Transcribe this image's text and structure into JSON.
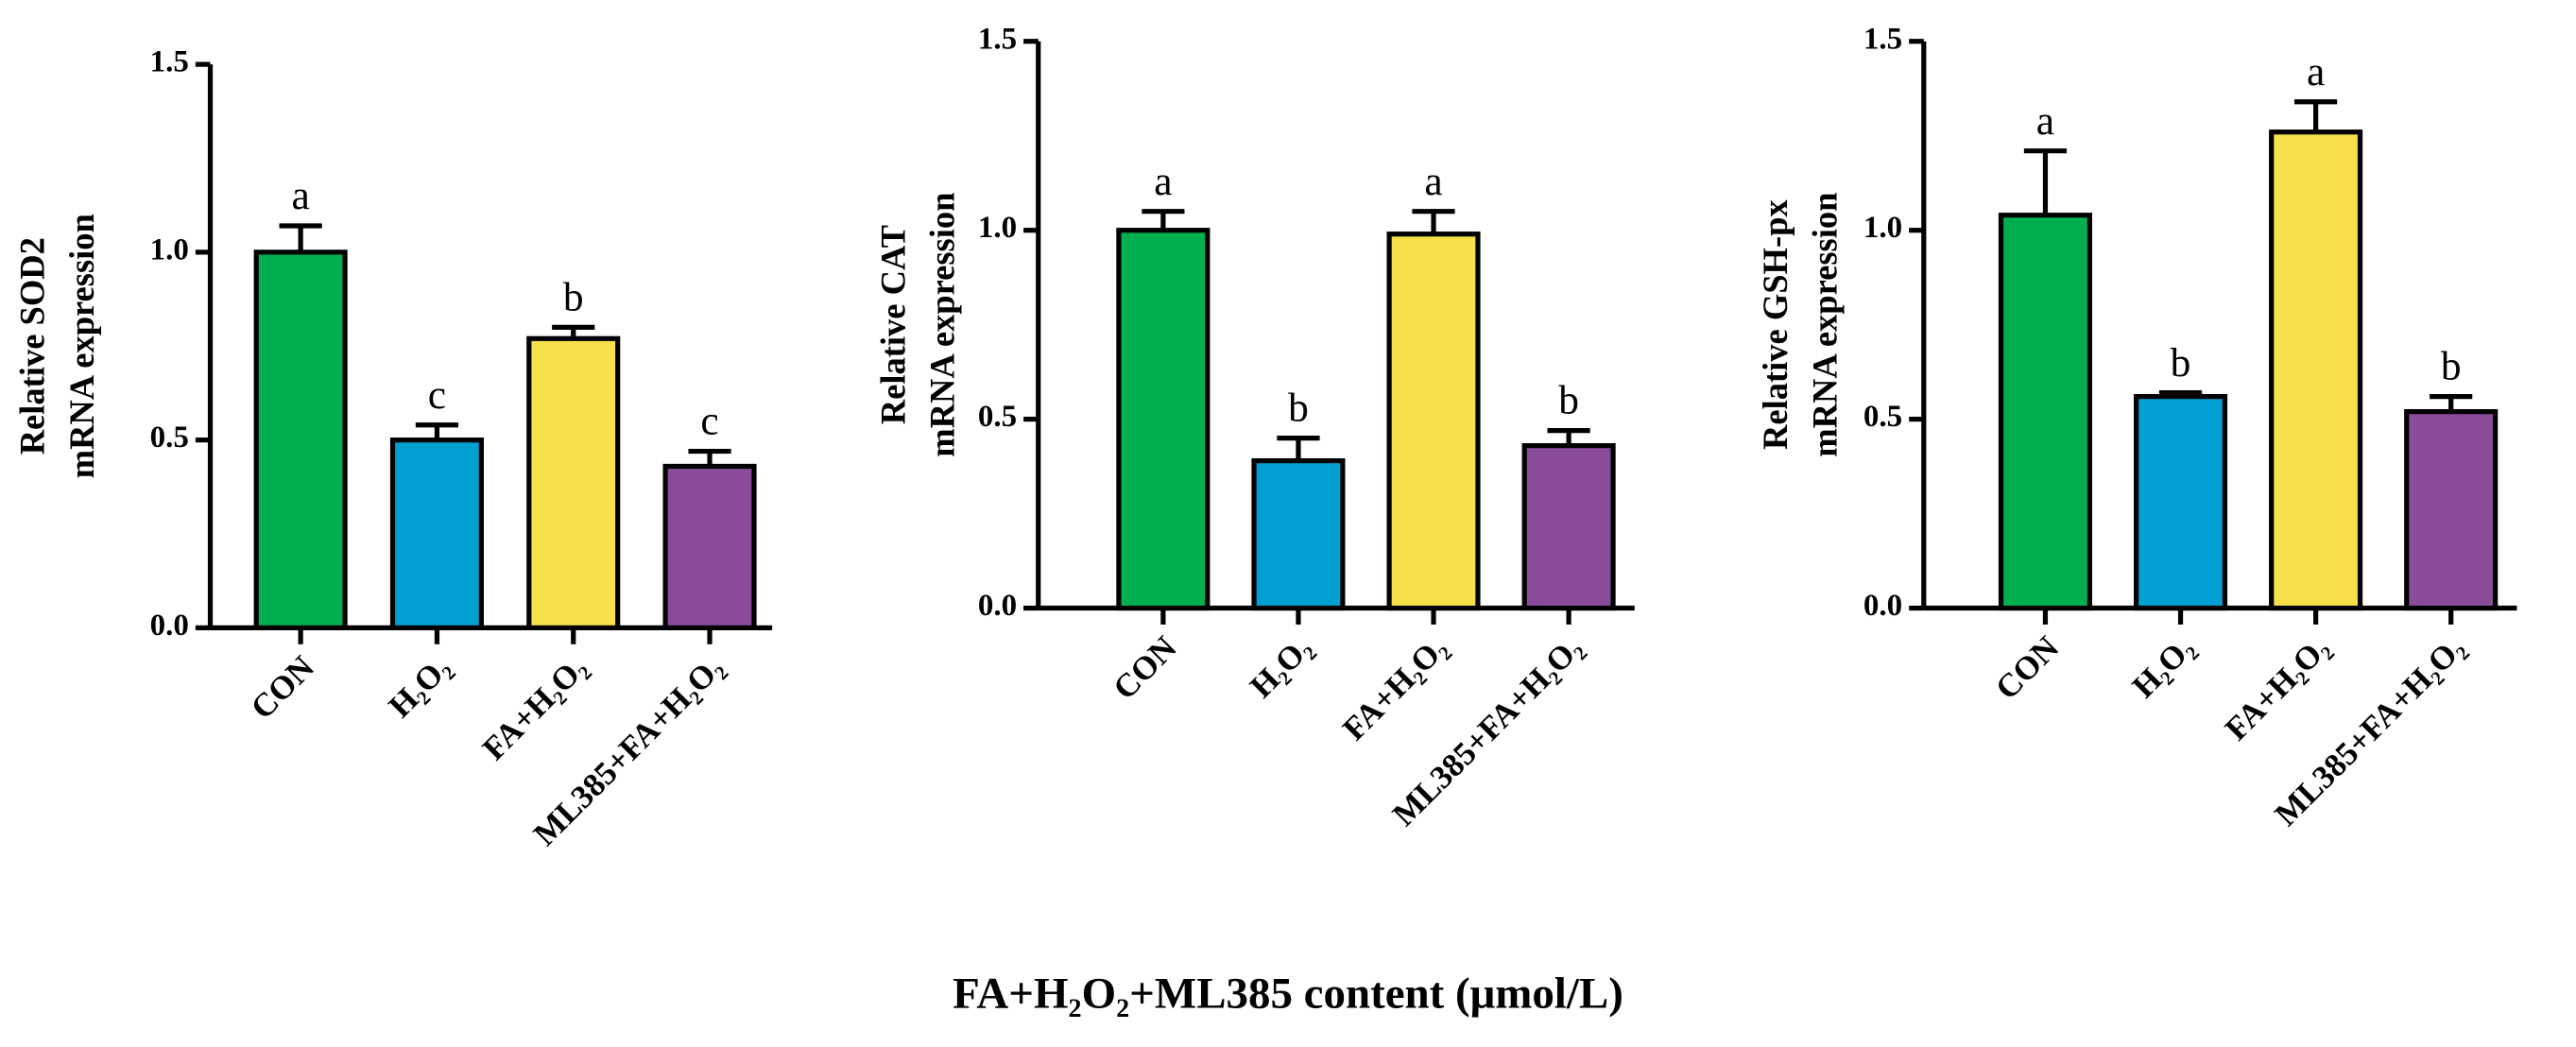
{
  "chart_data": [
    {
      "type": "bar",
      "ylabel": [
        "Relative SOD2",
        "mRNA expression"
      ],
      "categories": [
        "CON",
        "H₂O₂",
        "FA+H₂O₂",
        "ML385+FA+H₂O₂"
      ],
      "series": [
        {
          "colors": [
            "#00b050",
            "#00a0d2",
            "#f5e04a",
            "#8b4b9b"
          ],
          "values": [
            1.0,
            0.5,
            0.77,
            0.43
          ],
          "errors": [
            0.07,
            0.04,
            0.03,
            0.04
          ],
          "annotations": [
            "a",
            "c",
            "b",
            "c"
          ]
        }
      ],
      "ylim": [
        0,
        1.5
      ],
      "yticks": [
        {
          "value": 0,
          "label": "0.0"
        },
        {
          "value": 0.5,
          "label": "0.5"
        },
        {
          "value": 1,
          "label": "1.0"
        },
        {
          "value": 1.5,
          "label": "1.5"
        }
      ]
    },
    {
      "type": "bar",
      "ylabel": [
        "Relative CAT",
        "mRNA expression"
      ],
      "categories": [
        "CON",
        "H₂O₂",
        "FA+H₂O₂",
        "ML385+FA+H₂O₂"
      ],
      "series": [
        {
          "colors": [
            "#00b050",
            "#00a0d2",
            "#f5e04a",
            "#8b4b9b"
          ],
          "values": [
            1.0,
            0.39,
            0.99,
            0.43
          ],
          "errors": [
            0.05,
            0.06,
            0.06,
            0.04
          ],
          "annotations": [
            "a",
            "b",
            "a",
            "b"
          ]
        }
      ],
      "ylim": [
        0,
        1.5
      ],
      "yticks": [
        {
          "value": 0,
          "label": "0.0"
        },
        {
          "value": 0.5,
          "label": "0.5"
        },
        {
          "value": 1,
          "label": "1.0"
        },
        {
          "value": 1.5,
          "label": "1.5"
        }
      ]
    },
    {
      "type": "bar",
      "ylabel": [
        "Relative GSH-px",
        "mRNA expression"
      ],
      "categories": [
        "CON",
        "H₂O₂",
        "FA+H₂O₂",
        "ML385+FA+H₂O₂"
      ],
      "series": [
        {
          "colors": [
            "#00b050",
            "#00a0d2",
            "#f5e04a",
            "#8b4b9b"
          ],
          "values": [
            1.04,
            0.56,
            1.26,
            0.52
          ],
          "errors": [
            0.17,
            0.01,
            0.08,
            0.04
          ],
          "annotations": [
            "a",
            "b",
            "a",
            "b"
          ]
        }
      ],
      "ylim": [
        0,
        1.5
      ],
      "yticks": [
        {
          "value": 0,
          "label": "0.0"
        },
        {
          "value": 0.5,
          "label": "0.5"
        },
        {
          "value": 1,
          "label": "1.0"
        },
        {
          "value": 1.5,
          "label": "1.5"
        }
      ]
    }
  ],
  "xlabel": "FA+H₂O₂+ML385 content (μmol/L)"
}
